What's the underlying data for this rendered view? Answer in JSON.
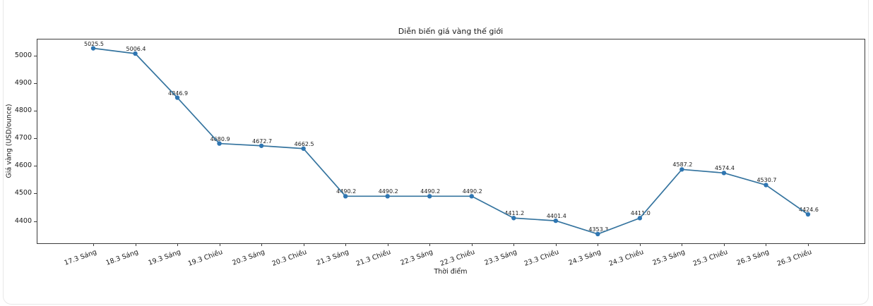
{
  "chart_data": {
    "type": "line",
    "title": "Diễn biến giá vàng thế giới",
    "xlabel": "Thời điểm",
    "ylabel": "Giá vàng (USD/ounce)",
    "categories": [
      "17.3 Sáng",
      "18.3 Sáng",
      "19.3 Sáng",
      "19.3 Chiều",
      "20.3 Sáng",
      "20.3 Chiều",
      "21.3 Sáng",
      "21.3 Chiều",
      "22.3 Sáng",
      "22.3 Chiều",
      "23.3 Sáng",
      "23.3 Chiều",
      "24.3 Sáng",
      "24.3 Chiều",
      "25.3 Sáng",
      "25.3 Chiều",
      "26.3 Sáng",
      "26.3 Chiều"
    ],
    "values": [
      5025.5,
      5006.4,
      4846.9,
      4680.9,
      4672.7,
      4662.5,
      4490.2,
      4490.2,
      4490.2,
      4490.2,
      4411.2,
      4401.4,
      4353.3,
      4411.0,
      4587.2,
      4574.4,
      4530.7,
      4424.6
    ],
    "point_labels": [
      "5025.5",
      "5006.4",
      "4846.9",
      "4680.9",
      "4672.7",
      "4662.5",
      "4490.2",
      "4490.2",
      "4490.2",
      "4490.2",
      "4411.2",
      "4401.4",
      "4353.3",
      "4411.0",
      "4587.2",
      "4574.4",
      "4530.7",
      "4424.6"
    ],
    "yticks": [
      4400,
      4500,
      4600,
      4700,
      4800,
      4900,
      5000
    ],
    "ylim": [
      4320,
      5060
    ],
    "grid": false,
    "legend": "none",
    "line_color": "#35749f",
    "marker_color": "#2f76b2",
    "axis_color": "#3c3c3c",
    "text_color": "#1a1a1a"
  }
}
